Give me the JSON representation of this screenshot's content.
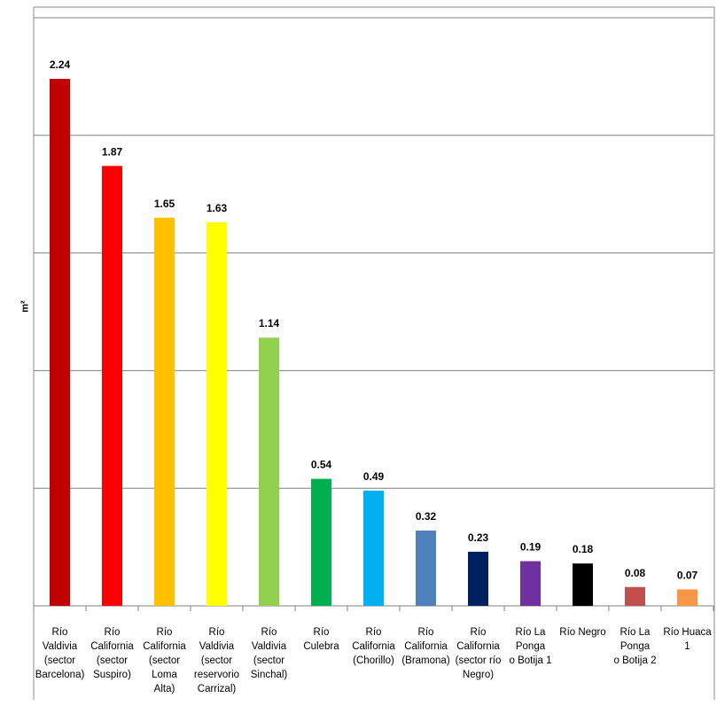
{
  "chart_data": {
    "type": "bar",
    "title": "",
    "xlabel": "",
    "ylabel": "m²",
    "ylim": [
      0,
      2.5
    ],
    "grid": true,
    "legend": "none",
    "categories": [
      "Río Valdivia (sector Barcelona)",
      "Río California (sector Suspiro)",
      "Río California (sector Loma Alta)",
      "Río Valdivia (sector reservorio Carrizal)",
      "Río Valdivia (sector Sinchal)",
      "Río Culebra",
      "Río California (Chorillo)",
      "Río California (Bramona)",
      "Río California (sector río Negro)",
      "Río La Ponga o Botija 1",
      "Río Negro",
      "Río La Ponga o Botija 2",
      "Río Huaca 1"
    ],
    "category_lines": [
      [
        "Río Valdivia",
        "(sector",
        "Barcelona)"
      ],
      [
        "Río",
        "California",
        "(sector",
        "Suspiro)"
      ],
      [
        "Río",
        "California",
        "(sector Loma",
        "Alta)"
      ],
      [
        "Río Valdivia",
        "(sector",
        "reservorio",
        "Carrizal)"
      ],
      [
        "Río Valdivia",
        "(sector",
        "Sinchal)"
      ],
      [
        "Río Culebra"
      ],
      [
        "Río",
        "California",
        "(Chorillo)"
      ],
      [
        "Río",
        "California",
        "(Bramona)"
      ],
      [
        "Río",
        "California",
        "(sector río",
        "Negro)"
      ],
      [
        "Río La Ponga",
        "o Botija 1"
      ],
      [
        "Río Negro"
      ],
      [
        "Río La Ponga",
        "o Botija 2"
      ],
      [
        "Río Huaca 1"
      ]
    ],
    "values": [
      2.24,
      1.87,
      1.65,
      1.63,
      1.14,
      0.54,
      0.49,
      0.32,
      0.23,
      0.19,
      0.18,
      0.08,
      0.07
    ],
    "value_labels": [
      "2.24",
      "1.87",
      "1.65",
      "1.63",
      "1.14",
      "0.54",
      "0.49",
      "0.32",
      "0.23",
      "0.19",
      "0.18",
      "0.08",
      "0.07"
    ],
    "colors": [
      "#c00000",
      "#ff0000",
      "#ffc000",
      "#ffff00",
      "#92d050",
      "#00b050",
      "#00b0f0",
      "#4f81bd",
      "#002060",
      "#7030a0",
      "#000000",
      "#c0504d",
      "#f79646"
    ]
  }
}
